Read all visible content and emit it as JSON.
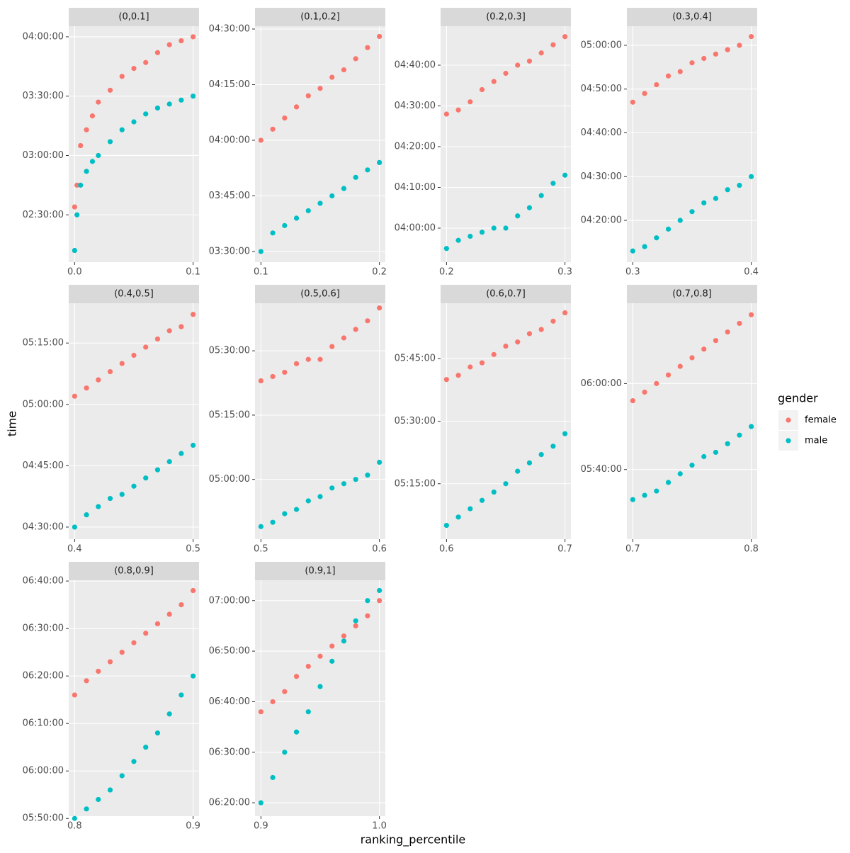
{
  "chart_data": {
    "type": "scatter",
    "xlabel": "ranking_percentile",
    "ylabel": "time",
    "legend_title": "gender",
    "legend_position": "right",
    "grid": true,
    "series": [
      {
        "name": "female",
        "color": "#F8766D"
      },
      {
        "name": "male",
        "color": "#00BFC4"
      }
    ],
    "facets": [
      {
        "title": "(0,0.1]",
        "xlim": [
          -0.005,
          0.105
        ],
        "xticks": [
          {
            "value": 0,
            "label": "0.0"
          },
          0.1
        ],
        "ylim": [
          7566,
          14721
        ],
        "yticks": [
          {
            "value": 9000,
            "label": "02:30:00"
          },
          {
            "value": 10800,
            "label": "03:00:00"
          },
          {
            "value": 12600,
            "label": "03:30:00"
          },
          {
            "value": 14400,
            "label": "04:00:00"
          }
        ],
        "x": [
          0,
          0.002,
          0.005,
          0.01,
          0.015,
          0.02,
          0.03,
          0.04,
          0.05,
          0.06,
          0.07,
          0.08,
          0.09,
          0.1
        ],
        "series": [
          {
            "values": [
              9240,
              9900,
              11100,
              11580,
              12000,
              12420,
              12780,
              13200,
              13440,
              13620,
              13920,
              14160,
              14280,
              14400
            ]
          },
          {
            "values": [
              7920,
              9000,
              9900,
              10320,
              10620,
              10800,
              11220,
              11580,
              11820,
              12060,
              12240,
              12360,
              12480,
              12600
            ]
          }
        ]
      },
      {
        "title": "(0.1,0.2]",
        "xlim": [
          0.095,
          0.205
        ],
        "xticks": [
          0.1,
          0.2
        ],
        "ylim": [
          12428,
          16246
        ],
        "yticks": [
          {
            "value": 12600,
            "label": "03:30:00"
          },
          {
            "value": 13500,
            "label": "03:45:00"
          },
          {
            "value": 14400,
            "label": "04:00:00"
          },
          {
            "value": 15300,
            "label": "04:15:00"
          },
          {
            "value": 16200,
            "label": "04:30:00"
          }
        ],
        "x": [
          0.1,
          0.11,
          0.12,
          0.13,
          0.14,
          0.15,
          0.16,
          0.17,
          0.18,
          0.19,
          0.2
        ],
        "series": [
          {
            "values": [
              14400,
              14580,
              14760,
              14940,
              15120,
              15240,
              15420,
              15540,
              15720,
              15900,
              16080
            ]
          },
          {
            "values": [
              12600,
              12900,
              13020,
              13140,
              13260,
              13380,
              13500,
              13620,
              13800,
              13920,
              14040
            ]
          }
        ]
      },
      {
        "title": "(0.2,0.3]",
        "xlim": [
          0.195,
          0.305
        ],
        "xticks": [
          0.2,
          0.3
        ],
        "ylim": [
          13899,
          17374
        ],
        "yticks": [
          {
            "value": 14400,
            "label": "04:00:00"
          },
          {
            "value": 15000,
            "label": "04:10:00"
          },
          {
            "value": 15600,
            "label": "04:20:00"
          },
          {
            "value": 16200,
            "label": "04:30:00"
          },
          {
            "value": 16800,
            "label": "04:40:00"
          }
        ],
        "x": [
          0.2,
          0.21,
          0.22,
          0.23,
          0.24,
          0.25,
          0.26,
          0.27,
          0.28,
          0.29,
          0.3
        ],
        "series": [
          {
            "values": [
              16080,
              16140,
              16260,
              16440,
              16560,
              16680,
              16800,
              16860,
              16980,
              17100,
              17220
            ]
          },
          {
            "values": [
              14100,
              14220,
              14280,
              14340,
              14400,
              14400,
              14580,
              14700,
              14880,
              15060,
              15180
            ]
          }
        ]
      },
      {
        "title": "(0.3,0.4]",
        "xlim": [
          0.295,
          0.405
        ],
        "xticks": [
          0.3,
          0.4
        ],
        "ylim": [
          15027,
          18262
        ],
        "yticks": [
          {
            "value": 15600,
            "label": "04:20:00"
          },
          {
            "value": 16200,
            "label": "04:30:00"
          },
          {
            "value": 16800,
            "label": "04:40:00"
          },
          {
            "value": 17400,
            "label": "04:50:00"
          },
          {
            "value": 18000,
            "label": "05:00:00"
          }
        ],
        "x": [
          0.3,
          0.31,
          0.32,
          0.33,
          0.34,
          0.35,
          0.36,
          0.37,
          0.38,
          0.39,
          0.4
        ],
        "series": [
          {
            "values": [
              17220,
              17340,
              17460,
              17580,
              17640,
              17760,
              17820,
              17880,
              17940,
              18000,
              18120
            ]
          },
          {
            "values": [
              15180,
              15240,
              15360,
              15480,
              15600,
              15720,
              15840,
              15900,
              16020,
              16080,
              16200
            ]
          }
        ]
      },
      {
        "title": "(0.4,0.5]",
        "xlim": [
          0.395,
          0.505
        ],
        "xticks": [
          0.4,
          0.5
        ],
        "ylim": [
          16023,
          19484
        ],
        "yticks": [
          {
            "value": 16200,
            "label": "04:30:00"
          },
          {
            "value": 17100,
            "label": "04:45:00"
          },
          {
            "value": 18000,
            "label": "05:00:00"
          },
          {
            "value": 18900,
            "label": "05:15:00"
          }
        ],
        "x": [
          0.4,
          0.41,
          0.42,
          0.43,
          0.44,
          0.45,
          0.46,
          0.47,
          0.48,
          0.49,
          0.5
        ],
        "series": [
          {
            "values": [
              18120,
              18240,
              18360,
              18480,
              18600,
              18720,
              18840,
              18960,
              19080,
              19140,
              19320
            ]
          },
          {
            "values": [
              16200,
              16380,
              16500,
              16620,
              16680,
              16800,
              16920,
              17040,
              17160,
              17280,
              17400
            ]
          }
        ]
      },
      {
        "title": "(0.5,0.6]",
        "xlim": [
          0.495,
          0.605
        ],
        "xticks": [
          0.5,
          0.6
        ],
        "ylim": [
          17164,
          20466
        ],
        "yticks": [
          {
            "value": 18000,
            "label": "05:00:00"
          },
          {
            "value": 18900,
            "label": "05:15:00"
          },
          {
            "value": 19800,
            "label": "05:30:00"
          }
        ],
        "x": [
          0.5,
          0.51,
          0.52,
          0.53,
          0.54,
          0.55,
          0.56,
          0.57,
          0.58,
          0.59,
          0.6
        ],
        "series": [
          {
            "values": [
              19380,
              19440,
              19500,
              19620,
              19680,
              19680,
              19860,
              19980,
              20100,
              20220,
              20400
            ]
          },
          {
            "values": [
              17340,
              17400,
              17520,
              17580,
              17700,
              17760,
              17880,
              17940,
              18000,
              18060,
              18240
            ]
          }
        ]
      },
      {
        "title": "(0.6,0.7]",
        "xlim": [
          0.595,
          0.705
        ],
        "xticks": [
          0.6,
          0.7
        ],
        "ylim": [
          18102,
          21498
        ],
        "yticks": [
          {
            "value": 18900,
            "label": "05:15:00"
          },
          {
            "value": 19800,
            "label": "05:30:00"
          },
          {
            "value": 20700,
            "label": "05:45:00"
          }
        ],
        "x": [
          0.6,
          0.61,
          0.62,
          0.63,
          0.64,
          0.65,
          0.66,
          0.67,
          0.68,
          0.69,
          0.7
        ],
        "series": [
          {
            "values": [
              20400,
              20460,
              20580,
              20640,
              20760,
              20880,
              20940,
              21060,
              21120,
              21240,
              21360
            ]
          },
          {
            "values": [
              18300,
              18420,
              18540,
              18660,
              18780,
              18900,
              19080,
              19200,
              19320,
              19440,
              19620
            ]
          }
        ]
      },
      {
        "title": "(0.7,0.8]",
        "xlim": [
          0.695,
          0.805
        ],
        "xticks": [
          0.7,
          0.8
        ],
        "ylim": [
          19428,
          22721
        ],
        "yticks": [
          {
            "value": 20400,
            "label": "05:40:00"
          },
          {
            "value": 21600,
            "label": "06:00:00"
          }
        ],
        "x": [
          0.7,
          0.71,
          0.72,
          0.73,
          0.74,
          0.75,
          0.76,
          0.77,
          0.78,
          0.79,
          0.8
        ],
        "series": [
          {
            "values": [
              21360,
              21480,
              21600,
              21720,
              21840,
              21960,
              22080,
              22200,
              22320,
              22440,
              22560
            ]
          },
          {
            "values": [
              19980,
              20040,
              20100,
              20220,
              20340,
              20460,
              20580,
              20640,
              20760,
              20880,
              21000
            ]
          }
        ]
      },
      {
        "title": "(0.8,0.9]",
        "xlim": [
          0.795,
          0.905
        ],
        "xticks": [
          0.8,
          0.9
        ],
        "ylim": [
          21029,
          24010
        ],
        "yticks": [
          {
            "value": 21000,
            "label": "05:50:00"
          },
          {
            "value": 21600,
            "label": "06:00:00"
          },
          {
            "value": 22200,
            "label": "06:10:00"
          },
          {
            "value": 22800,
            "label": "06:20:00"
          },
          {
            "value": 23400,
            "label": "06:30:00"
          },
          {
            "value": 24000,
            "label": "06:40:00"
          }
        ],
        "x": [
          0.8,
          0.81,
          0.82,
          0.83,
          0.84,
          0.85,
          0.86,
          0.87,
          0.88,
          0.89,
          0.9
        ],
        "series": [
          {
            "values": [
              22560,
              22740,
              22860,
              22980,
              23100,
              23220,
              23340,
              23460,
              23580,
              23700,
              23880
            ]
          },
          {
            "values": [
              21000,
              21120,
              21240,
              21360,
              21540,
              21720,
              21900,
              22080,
              22320,
              22560,
              22800
            ]
          }
        ]
      },
      {
        "title": "(0.9,1]",
        "xlim": [
          0.895,
          1.005
        ],
        "xticks": [
          0.9,
          {
            "value": 1,
            "label": "1.0"
          }
        ],
        "ylim": [
          22641,
          25442
        ],
        "yticks": [
          {
            "value": 22800,
            "label": "06:20:00"
          },
          {
            "value": 23400,
            "label": "06:30:00"
          },
          {
            "value": 24000,
            "label": "06:40:00"
          },
          {
            "value": 24600,
            "label": "06:50:00"
          },
          {
            "value": 25200,
            "label": "07:00:00"
          }
        ],
        "x": [
          0.9,
          0.91,
          0.92,
          0.93,
          0.94,
          0.95,
          0.96,
          0.97,
          0.98,
          0.99,
          1
        ],
        "series": [
          {
            "values": [
              23880,
              24000,
              24120,
              24300,
              24420,
              24540,
              24660,
              24780,
              24900,
              25020,
              25200
            ]
          },
          {
            "values": [
              22800,
              23100,
              23400,
              23640,
              23880,
              24180,
              24480,
              24720,
              24960,
              25200,
              25320
            ]
          }
        ]
      }
    ]
  }
}
